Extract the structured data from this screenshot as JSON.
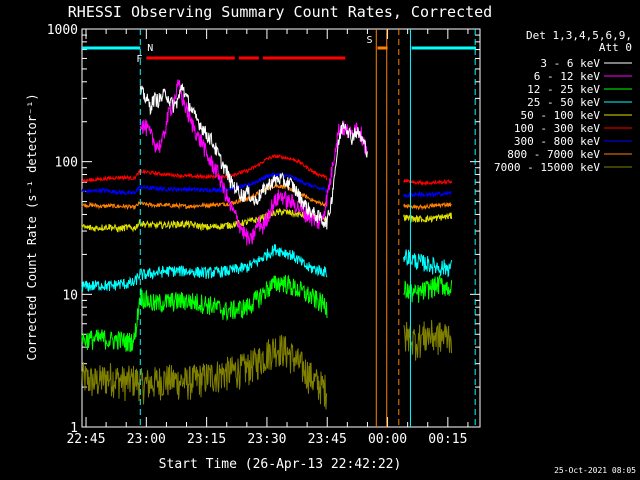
{
  "chart_data": {
    "type": "line",
    "title": "RHESSI Observing Summary Count Rates, Corrected",
    "xlabel": "Start Time (26-Apr-13 22:42:22)",
    "ylabel": "Corrected Count Rate (s⁻¹ detector⁻¹)",
    "yscale": "log",
    "ylim": [
      1,
      1000
    ],
    "xlim_minutes": [
      -1,
      98
    ],
    "x_ticks": [
      {
        "label": "22:45",
        "minute": 0
      },
      {
        "label": "23:00",
        "minute": 15
      },
      {
        "label": "23:15",
        "minute": 30
      },
      {
        "label": "23:30",
        "minute": 45
      },
      {
        "label": "23:45",
        "minute": 60
      },
      {
        "label": "00:00",
        "minute": 75
      },
      {
        "label": "00:15",
        "minute": 90
      }
    ],
    "y_ticks": [
      {
        "label": "1",
        "value": 1
      },
      {
        "label": "10",
        "value": 10
      },
      {
        "label": "100",
        "value": 100
      },
      {
        "label": "1000",
        "value": 1000
      }
    ],
    "legend_header": [
      "Det 1,3,4,5,6,9,",
      "Att 0"
    ],
    "series": [
      {
        "name": "3 - 6 keV",
        "color": "#ffffff",
        "x": [
          13.5,
          14,
          15,
          16,
          17,
          18,
          19,
          20,
          21,
          22,
          23,
          24,
          25,
          26,
          27,
          28,
          29,
          30,
          31,
          32,
          33,
          34,
          35,
          36,
          37,
          38,
          39,
          40,
          41,
          42,
          43,
          44,
          45,
          46,
          47,
          48,
          49,
          50,
          51,
          52,
          53,
          54,
          55,
          56,
          57,
          58,
          59,
          60,
          61,
          62,
          63,
          64,
          65,
          66,
          67,
          68,
          69,
          70
        ],
        "y": [
          340,
          330,
          300,
          260,
          300,
          290,
          310,
          330,
          280,
          260,
          300,
          380,
          300,
          260,
          220,
          200,
          180,
          160,
          150,
          130,
          110,
          95,
          85,
          70,
          65,
          60,
          55,
          60,
          55,
          50,
          55,
          60,
          65,
          70,
          72,
          75,
          72,
          70,
          68,
          62,
          55,
          50,
          45,
          42,
          40,
          38,
          36,
          35,
          50,
          90,
          150,
          200,
          180,
          150,
          170,
          160,
          140,
          120
        ]
      },
      {
        "name": "6 - 12 keV",
        "color": "#ff00ff",
        "x": [
          13.5,
          14,
          15,
          16,
          17,
          18,
          19,
          20,
          21,
          22,
          23,
          24,
          25,
          26,
          27,
          28,
          29,
          30,
          31,
          32,
          33,
          34,
          35,
          36,
          37,
          38,
          39,
          40,
          41,
          42,
          43,
          44,
          45,
          46,
          47,
          48,
          49,
          50,
          51,
          52,
          53,
          54,
          55,
          56,
          57,
          58,
          59,
          60,
          61,
          62,
          63,
          64,
          65,
          66,
          67,
          68,
          69,
          70
        ],
        "y": [
          200,
          190,
          180,
          160,
          140,
          130,
          140,
          200,
          250,
          300,
          380,
          300,
          250,
          200,
          180,
          150,
          140,
          110,
          100,
          90,
          80,
          65,
          55,
          45,
          40,
          35,
          30,
          27,
          25,
          30,
          35,
          32,
          38,
          45,
          50,
          55,
          55,
          50,
          50,
          48,
          45,
          42,
          40,
          38,
          36,
          35,
          40,
          55,
          80,
          130,
          180,
          180,
          170,
          160,
          190,
          170,
          150,
          110
        ]
      },
      {
        "name": "12 - 25 keV",
        "color": "#00ff00",
        "x": [
          -1,
          2,
          4,
          6,
          8,
          10,
          12,
          13.5,
          14,
          17,
          20,
          25,
          30,
          35,
          40,
          43,
          45,
          47,
          49,
          51,
          53,
          55,
          57,
          59,
          60
        ],
        "y": [
          4.6,
          4.6,
          4.7,
          4.5,
          4.6,
          4.4,
          4.5,
          10,
          9.5,
          8.5,
          8.8,
          9,
          8.5,
          7.5,
          8,
          9.5,
          11,
          12,
          12.5,
          11.5,
          10.8,
          10,
          9.2,
          8.5,
          8
        ]
      },
      {
        "name": "25 - 50 keV",
        "color": "#00ffff",
        "x": [
          -1,
          2,
          4,
          6,
          8,
          10,
          12,
          13.5,
          14,
          17,
          20,
          25,
          30,
          35,
          40,
          43,
          45,
          47,
          49,
          51,
          53,
          55,
          57,
          59,
          60
        ],
        "y": [
          11.5,
          11.6,
          11.8,
          11.5,
          12,
          12,
          12.2,
          14.5,
          14,
          14.5,
          15,
          15,
          14.5,
          15,
          16,
          18,
          20,
          22,
          21,
          20,
          18,
          16,
          15.5,
          15,
          14.5
        ]
      },
      {
        "name": "50 - 100 keV",
        "color": "#e0e000",
        "x": [
          -1,
          2,
          4,
          6,
          8,
          10,
          12,
          13.5,
          14,
          17,
          20,
          25,
          30,
          35,
          40,
          43,
          45,
          47,
          49,
          51,
          53,
          55,
          57,
          59,
          60
        ],
        "y": [
          32,
          31.5,
          32,
          32.5,
          31,
          32,
          31.5,
          35,
          34,
          33,
          33.5,
          34,
          32,
          33,
          35,
          37,
          39,
          41,
          42,
          41,
          40,
          39,
          38,
          37,
          36
        ]
      },
      {
        "name": "100 - 300 keV",
        "color": "#ff0000",
        "x": [
          -1,
          2,
          4,
          6,
          8,
          10,
          12,
          13.5,
          14,
          17,
          20,
          25,
          30,
          35,
          40,
          43,
          45,
          47,
          49,
          51,
          53,
          55,
          57,
          59,
          60
        ],
        "y": [
          72,
          73,
          74,
          75,
          76,
          76,
          75,
          85,
          84,
          82,
          80,
          78,
          77,
          78,
          85,
          95,
          105,
          110,
          108,
          105,
          100,
          90,
          82,
          78,
          75
        ]
      },
      {
        "name": "300 - 800 keV",
        "color": "#0000ff",
        "x": [
          -1,
          2,
          4,
          6,
          8,
          10,
          12,
          13.5,
          14,
          17,
          20,
          25,
          30,
          35,
          40,
          43,
          45,
          47,
          49,
          51,
          53,
          55,
          57,
          59,
          60
        ],
        "y": [
          60,
          60,
          61,
          60,
          59,
          58,
          58,
          65,
          64,
          63,
          62,
          62,
          61,
          62,
          66,
          72,
          78,
          80,
          79,
          77,
          72,
          68,
          64,
          62,
          61
        ]
      },
      {
        "name": "800 - 7000 keV",
        "color": "#ff8000",
        "x": [
          -1,
          2,
          4,
          6,
          8,
          10,
          12,
          13.5,
          14,
          17,
          20,
          25,
          30,
          35,
          40,
          43,
          45,
          47,
          49,
          51,
          53,
          55,
          57,
          59,
          60
        ],
        "y": [
          47,
          47,
          46,
          46.5,
          46,
          46,
          45,
          49,
          48,
          47,
          47,
          46,
          47,
          48,
          52,
          58,
          63,
          66,
          65,
          62,
          58,
          54,
          50,
          48,
          47
        ]
      },
      {
        "name": "7000 - 15000 keV",
        "color": "#808000",
        "x": [
          -1,
          2,
          4,
          6,
          8,
          10,
          12,
          13.5,
          14,
          17,
          20,
          25,
          30,
          35,
          40,
          43,
          45,
          47,
          49,
          51,
          53,
          55,
          57,
          59,
          60
        ],
        "y": [
          2.4,
          2.2,
          2.3,
          2.4,
          2.3,
          2.2,
          2.3,
          2.2,
          2.1,
          2.2,
          2.3,
          2.2,
          2.4,
          2.6,
          2.8,
          3.2,
          3.6,
          4,
          3.9,
          3.5,
          3.0,
          2.6,
          2.2,
          2,
          1.9
        ]
      }
    ],
    "post_gap_series": [
      {
        "x": [
          79,
          82,
          85,
          88,
          91
        ],
        "y": [
          72,
          70,
          69,
          70,
          71
        ]
      },
      {
        "x": [
          79,
          82,
          85,
          88,
          91
        ],
        "y": [
          55,
          57,
          56,
          57,
          58
        ]
      },
      {
        "x": [
          79,
          82,
          85,
          88,
          91
        ],
        "y": [
          47,
          45,
          46,
          47,
          48
        ]
      },
      {
        "x": [
          79,
          82,
          85,
          88,
          91
        ],
        "y": [
          38,
          37,
          37,
          38,
          39
        ]
      },
      {
        "x": [
          79,
          82,
          85,
          88,
          91
        ],
        "y": [
          20,
          18,
          17,
          16,
          16
        ]
      },
      {
        "x": [
          79,
          82,
          85,
          88,
          91
        ],
        "y": [
          11,
          10,
          11,
          12,
          11
        ]
      },
      {
        "x": [
          79,
          82,
          85,
          88,
          91
        ],
        "y": [
          5,
          4.5,
          5,
          4.8,
          5
        ]
      }
    ],
    "flags": [
      {
        "label": "N",
        "color": "#00ffff",
        "segments": [
          [
            -1,
            13.5
          ],
          [
            81,
            97
          ]
        ],
        "row": "top"
      },
      {
        "label": "F",
        "color": "#ff0000",
        "segments": [
          [
            15,
            37
          ],
          [
            38,
            43
          ],
          [
            44,
            64.5
          ]
        ],
        "row": "second"
      },
      {
        "label": "S",
        "color": "#ff8000",
        "segments": [
          [
            72.5,
            75
          ]
        ],
        "row": "top"
      }
    ],
    "markers": [
      {
        "minute": 13.5,
        "color": "#00ffff",
        "style": "dashed"
      },
      {
        "minute": 72.2,
        "color": "#ff8000",
        "style": "solid"
      },
      {
        "minute": 74.8,
        "color": "#ff8000",
        "style": "solid"
      },
      {
        "minute": 77.8,
        "color": "#ff8000",
        "style": "dashed"
      },
      {
        "minute": 80.7,
        "color": "#00ffff",
        "style": "solid"
      },
      {
        "minute": 96.8,
        "color": "#00ffff",
        "style": "dashed"
      }
    ]
  },
  "footer_date": "25-Oct-2021 08:05"
}
